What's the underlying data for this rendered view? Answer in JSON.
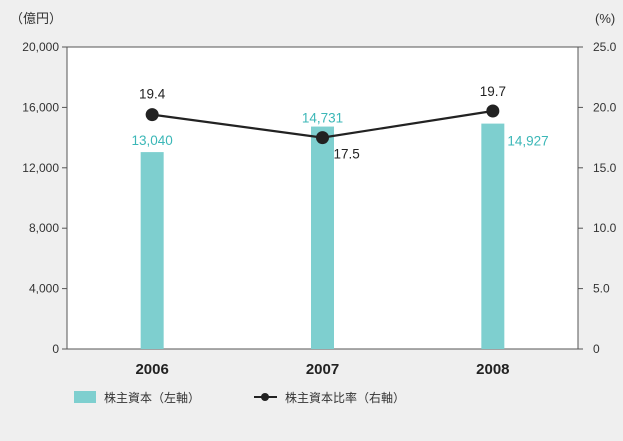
{
  "chart_data": {
    "type": "bar",
    "categories": [
      "2006",
      "2007",
      "2008"
    ],
    "series": [
      {
        "name": "株主資本（左軸）",
        "type": "bar",
        "axis": "left",
        "values": [
          13040,
          14731,
          14927
        ],
        "labels": [
          "13,040",
          "14,731",
          "14,927"
        ],
        "color": "#7ecfcf",
        "label_color": "#3bb7b7"
      },
      {
        "name": "株主資本比率（右軸）",
        "type": "line",
        "axis": "right",
        "values": [
          19.4,
          17.5,
          19.7
        ],
        "labels": [
          "19.4",
          "17.5",
          "19.7"
        ],
        "color": "#222222"
      }
    ],
    "y_left": {
      "unit": "（億円）",
      "ylim": [
        0,
        20000
      ],
      "ticks": [
        0,
        4000,
        8000,
        12000,
        16000,
        20000
      ],
      "tick_labels": [
        "0",
        "4,000",
        "8,000",
        "12,000",
        "16,000",
        "20,000"
      ]
    },
    "y_right": {
      "unit": "(%)",
      "ylim": [
        0,
        25
      ],
      "ticks": [
        0,
        5,
        10,
        15,
        20,
        25
      ],
      "tick_labels": [
        "0",
        "5.0",
        "10.0",
        "15.0",
        "20.0",
        "25.0"
      ]
    },
    "grid": false,
    "legend_position": "bottom-left"
  }
}
